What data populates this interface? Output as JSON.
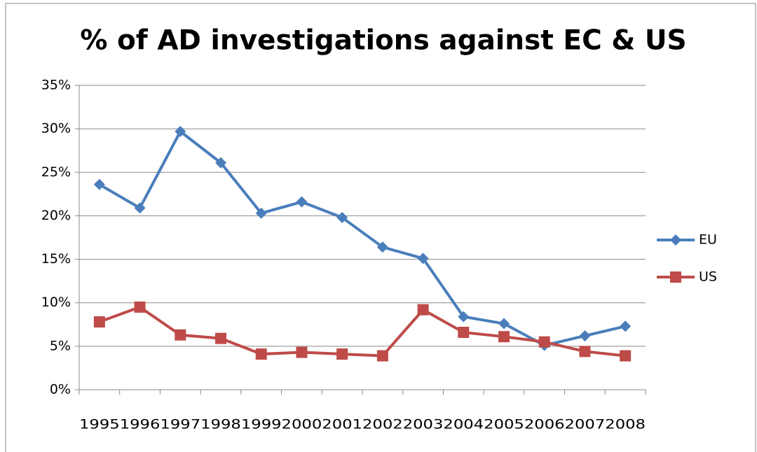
{
  "chart_data": {
    "type": "line",
    "title": "% of AD investigations against EC & US",
    "categories": [
      "1995",
      "1996",
      "1997",
      "1998",
      "1999",
      "2000",
      "2001",
      "2002",
      "2003",
      "2004",
      "2005",
      "2006",
      "2007",
      "2008"
    ],
    "series": [
      {
        "name": "EU",
        "color": "#4a7ebb",
        "marker": "diamond",
        "values": [
          23.6,
          20.9,
          29.7,
          26.1,
          20.3,
          21.6,
          19.8,
          16.4,
          15.1,
          8.4,
          7.6,
          5.1,
          6.2,
          7.3
        ]
      },
      {
        "name": "US",
        "color": "#be4b48",
        "marker": "square",
        "values": [
          7.8,
          9.5,
          6.3,
          5.9,
          4.1,
          4.3,
          4.1,
          3.9,
          9.2,
          6.6,
          6.1,
          5.5,
          4.4,
          3.9
        ]
      }
    ],
    "ylim": [
      0,
      35
    ],
    "yticks": [
      {
        "value": 0,
        "label": "0%"
      },
      {
        "value": 5,
        "label": "5%"
      },
      {
        "value": 10,
        "label": "10%"
      },
      {
        "value": 15,
        "label": "15%"
      },
      {
        "value": 20,
        "label": "20%"
      },
      {
        "value": 25,
        "label": "25%"
      },
      {
        "value": 30,
        "label": "30%"
      },
      {
        "value": 35,
        "label": "35%"
      }
    ],
    "grid": true,
    "legend": "right"
  }
}
